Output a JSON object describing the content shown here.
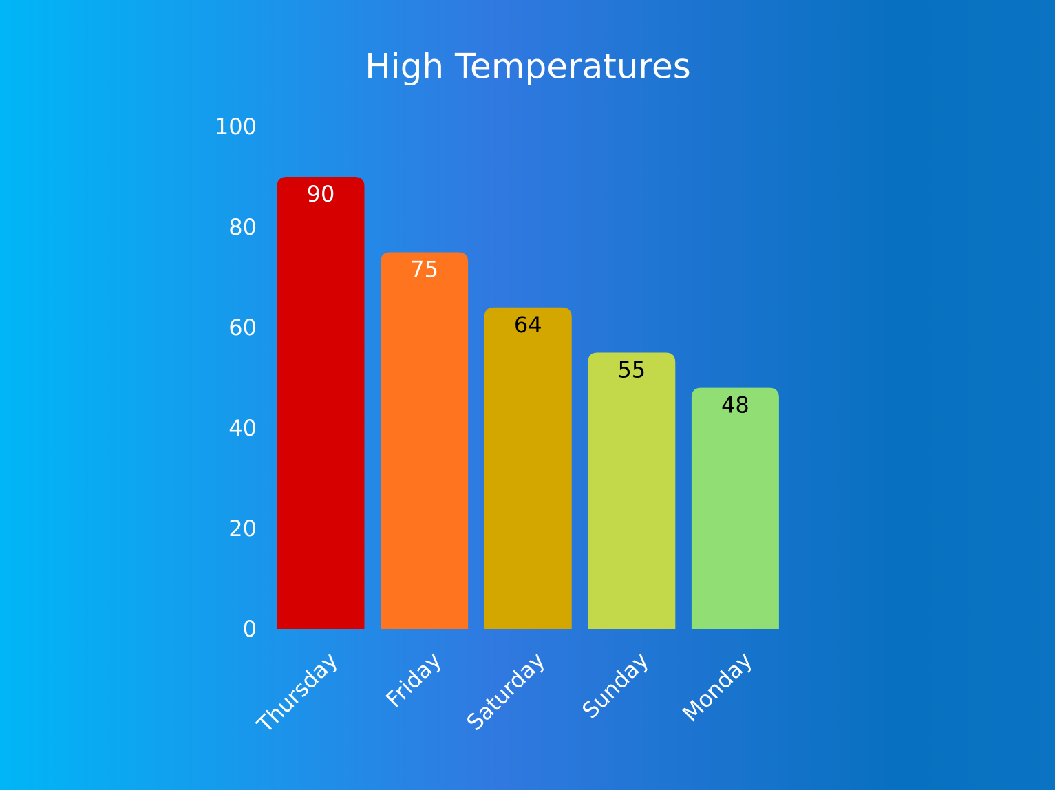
{
  "chart_data": {
    "type": "bar",
    "title": "High Temperatures",
    "categories": [
      "Thursday",
      "Friday",
      "Saturday",
      "Sunday",
      "Monday"
    ],
    "values": [
      90,
      75,
      64,
      55,
      48
    ],
    "colors": [
      "#d60000",
      "#ff751f",
      "#d4a600",
      "#c4d94a",
      "#91df74"
    ],
    "value_label_colors": [
      "#ffffff",
      "#ffffff",
      "#000000",
      "#000000",
      "#000000"
    ],
    "ylim": [
      0,
      100
    ],
    "yticks": [
      0,
      20,
      40,
      60,
      80,
      100
    ],
    "grid": false
  }
}
